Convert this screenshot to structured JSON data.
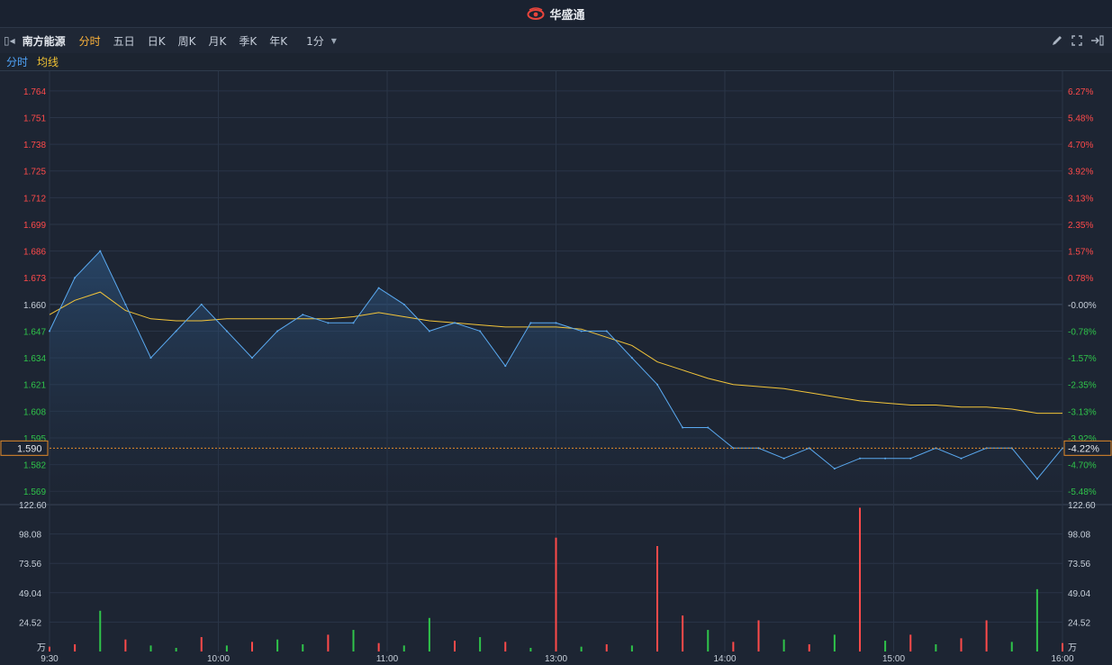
{
  "app": {
    "brand": "华盛通"
  },
  "toolbar": {
    "stock_name": "南方能源",
    "periods": [
      "分时",
      "五日",
      "日K",
      "周K",
      "月K",
      "季K",
      "年K"
    ],
    "active_period": "分时",
    "interval": "1分"
  },
  "legend": {
    "price_label": "分时",
    "avg_label": "均线"
  },
  "colors": {
    "up": "#ff4a4a",
    "down": "#2fc44a",
    "price_line": "#5aa9f0",
    "avg_line": "#f3c53a",
    "cursor": "#e28a2a"
  },
  "price_axis": {
    "labels": [
      "1.764",
      "1.751",
      "1.738",
      "1.725",
      "1.712",
      "1.699",
      "1.686",
      "1.673",
      "1.660",
      "1.647",
      "1.634",
      "1.621",
      "1.608",
      "1.595",
      "1.582",
      "1.569"
    ],
    "pct_labels": [
      "6.27%",
      "5.48%",
      "4.70%",
      "3.92%",
      "3.13%",
      "2.35%",
      "1.57%",
      "0.78%",
      "-0.00%",
      "-0.78%",
      "-1.57%",
      "-2.35%",
      "-3.13%",
      "-3.92%",
      "-4.70%",
      "-5.48%"
    ]
  },
  "volume_axis": {
    "labels": [
      "122.60",
      "98.08",
      "73.56",
      "49.04",
      "24.52"
    ],
    "unit": "万"
  },
  "time_axis": {
    "labels": [
      "9:30",
      "10:00",
      "11:00",
      "13:00",
      "14:00",
      "15:00",
      "16:00"
    ]
  },
  "cursor": {
    "price": "1.590",
    "pct": "-4.22%"
  },
  "chart_data": {
    "type": "line",
    "title": "",
    "prev_close": 1.66,
    "ylim": [
      1.5625,
      1.7705
    ],
    "volume_ylim": [
      0,
      122.6
    ],
    "x": [
      "9:30",
      "9:35",
      "9:40",
      "9:45",
      "9:50",
      "9:55",
      "10:00",
      "10:05",
      "10:10",
      "10:15",
      "10:20",
      "10:30",
      "10:40",
      "10:50",
      "11:00",
      "11:10",
      "11:20",
      "11:30",
      "12:00",
      "12:30",
      "13:00",
      "13:10",
      "13:20",
      "13:30",
      "13:40",
      "13:45",
      "13:50",
      "13:55",
      "14:00",
      "14:10",
      "14:20",
      "14:30",
      "14:40",
      "14:50",
      "15:00",
      "15:10",
      "15:20",
      "15:30",
      "15:40",
      "15:50",
      "16:00"
    ],
    "series": [
      {
        "name": "分时",
        "values": [
          1.647,
          1.673,
          1.686,
          1.66,
          1.634,
          1.647,
          1.66,
          1.647,
          1.634,
          1.647,
          1.655,
          1.651,
          1.651,
          1.668,
          1.66,
          1.647,
          1.651,
          1.647,
          1.63,
          1.651,
          1.651,
          1.647,
          1.647,
          1.634,
          1.621,
          1.6,
          1.6,
          1.59,
          1.59,
          1.585,
          1.59,
          1.58,
          1.585,
          1.585,
          1.585,
          1.59,
          1.585,
          1.59,
          1.59,
          1.575,
          1.59
        ]
      },
      {
        "name": "均线",
        "values": [
          1.655,
          1.662,
          1.666,
          1.657,
          1.653,
          1.652,
          1.652,
          1.653,
          1.653,
          1.653,
          1.653,
          1.653,
          1.654,
          1.656,
          1.654,
          1.652,
          1.651,
          1.65,
          1.649,
          1.649,
          1.649,
          1.648,
          1.644,
          1.64,
          1.632,
          1.628,
          1.624,
          1.621,
          1.62,
          1.619,
          1.617,
          1.615,
          1.613,
          1.612,
          1.611,
          1.611,
          1.61,
          1.61,
          1.609,
          1.607,
          1.607
        ]
      }
    ],
    "volume": [
      4,
      6,
      34,
      10,
      5,
      3,
      12,
      5,
      8,
      10,
      6,
      14,
      18,
      7,
      5,
      28,
      9,
      12,
      8,
      3,
      95,
      4,
      6,
      5,
      88,
      30,
      18,
      8,
      26,
      10,
      6,
      14,
      120,
      9,
      14,
      6,
      11,
      26,
      8,
      52,
      7
    ],
    "volume_up": [
      true,
      true,
      false,
      true,
      false,
      false,
      true,
      false,
      true,
      false,
      false,
      true,
      false,
      true,
      false,
      false,
      true,
      false,
      true,
      false,
      true,
      false,
      true,
      false,
      true,
      true,
      false,
      true,
      true,
      false,
      true,
      false,
      true,
      false,
      true,
      false,
      true,
      true,
      false,
      false,
      true
    ]
  }
}
